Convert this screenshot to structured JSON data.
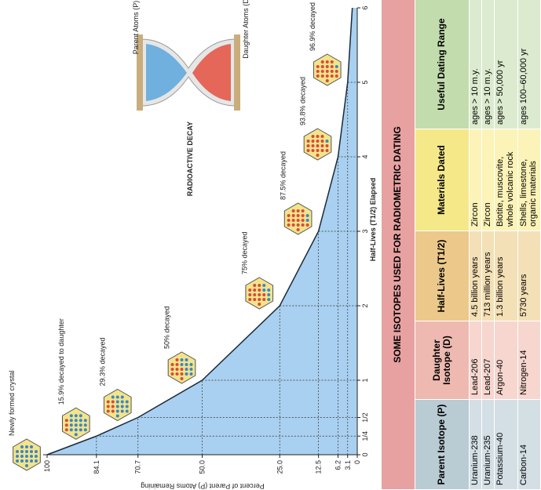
{
  "chart_data": {
    "type": "line",
    "x": [
      0,
      0.25,
      0.5,
      1,
      2,
      3,
      4,
      5,
      6
    ],
    "values": [
      100,
      84.1,
      70.7,
      50,
      25,
      12.5,
      6.2,
      3.1,
      1.6
    ],
    "color": "#a9d0f0",
    "xlim": [
      0,
      6
    ],
    "ylim": [
      0,
      100
    ],
    "xticks": [
      0,
      {
        "value": 0.25,
        "label": "1/4"
      },
      {
        "value": 0.5,
        "label": "1/2"
      },
      1,
      2,
      3,
      4,
      5,
      6
    ],
    "yticks": [
      100,
      84.1,
      70.7,
      {
        "value": 50,
        "label": "50.0"
      },
      {
        "value": 25,
        "label": "25.0"
      },
      12.5,
      6.2,
      3.1,
      0
    ],
    "x_label": "Half-Lives (T1/2) Elapsed",
    "y_label": "Percent of Parent (P) Atoms Remaining",
    "annotations": [
      "Newly formed crystal",
      "15.9% decayed to daughter",
      "29.3% decayed",
      "50% decayed",
      "75% decayed",
      "87.5% decayed",
      "93.8% decayed",
      "96.9% decayed"
    ],
    "diagram": {
      "parent": "Parent Atoms (P)",
      "daughter": "Daughter Atoms (D)",
      "title": "RADIOACTIVE DECAY"
    }
  },
  "table": {
    "title": "SOME ISOTOPES USED FOR RADIOMETRIC DATING",
    "headers": [
      "Parent Isotope (P)",
      "Daughter Isotope (D)",
      "Half-Lives (T1/2)",
      "Materials Dated",
      "Useful Dating Range"
    ],
    "rows": [
      [
        "Uranium-238",
        "Lead-206",
        "4.5 billion years",
        "Zircon",
        "ages > 10 m.y."
      ],
      [
        "Uranium-235",
        "Lead-207",
        "713 million years",
        "Zircon",
        "ages > 10 m.y."
      ],
      [
        "Potassium-40",
        "Argon-40",
        "1.3 billion years",
        "Biotite, muscovite, whole volcanic rock",
        "ages > 50,000 yr"
      ],
      [
        "Carbon-14",
        "Nitrogen-14",
        "5730 years",
        "Shells, limestone, organic materials",
        "ages 100–60,000 yr"
      ]
    ]
  }
}
